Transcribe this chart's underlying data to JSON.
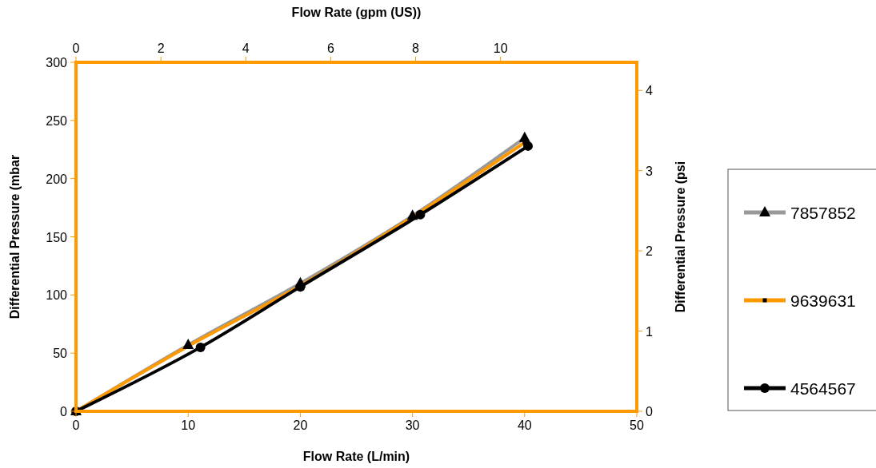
{
  "chart_data": {
    "type": "line",
    "xlabel": "Flow Rate (L/min)",
    "ylabel": "Differential Pressure (mbar",
    "y2label": "Differential Pressure (psi",
    "x2label": "Flow Rate (gpm (US))",
    "xlim": [
      0,
      50
    ],
    "xticks": [
      0,
      10,
      20,
      30,
      40,
      50
    ],
    "ylim": [
      0,
      300
    ],
    "yticks": [
      0,
      50,
      100,
      150,
      200,
      250,
      300
    ],
    "y2lim": [
      0,
      4.351
    ],
    "y2ticks": [
      0,
      1,
      2,
      3,
      4
    ],
    "x2lim": [
      0,
      13.21
    ],
    "x2ticks": [
      0,
      2,
      4,
      6,
      8,
      10
    ],
    "grid": false,
    "legend": "right",
    "series": [
      {
        "name": "7857852",
        "color": "#999999",
        "marker": "triangle",
        "x": [
          0,
          10,
          20,
          30,
          40
        ],
        "values": [
          0,
          57,
          110,
          168,
          235
        ]
      },
      {
        "name": "9639631",
        "color": "#ff9900",
        "marker": "square",
        "x": [
          0,
          10,
          20,
          30,
          40
        ],
        "values": [
          0,
          56,
          108,
          167,
          231
        ]
      },
      {
        "name": "4564567",
        "color": "#000000",
        "marker": "circle",
        "x": [
          0,
          11.1,
          20,
          30.7,
          40.3
        ],
        "values": [
          0,
          55,
          107,
          169,
          228
        ]
      }
    ]
  }
}
